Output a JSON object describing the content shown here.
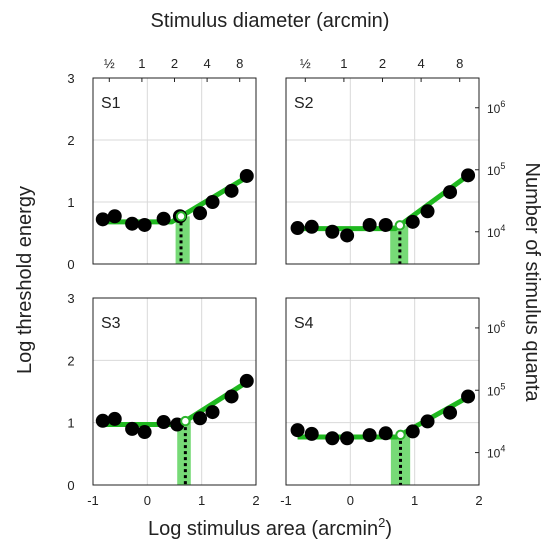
{
  "figure": {
    "top_axis_title": "Stimulus diameter (arcmin)",
    "bottom_axis_title": "Log stimulus area (arcmin",
    "bottom_axis_title_sup": "2",
    "bottom_axis_title_end": ")",
    "left_axis_title": "Log threshold energy",
    "right_axis_title": "Number of stimulus quanta"
  },
  "colors": {
    "fit_line": "#1fb81f",
    "shade": "#5fd35f",
    "points": "#000000",
    "critical_point_fill": "#ffffff",
    "critical_point_stroke": "#2bb52b",
    "grid": "#d9d9d9"
  },
  "chart_data": [
    {
      "type": "scatter",
      "panel": "S1",
      "x": [
        -0.82,
        -0.6,
        -0.28,
        -0.05,
        0.3,
        0.6,
        0.97,
        1.2,
        1.55,
        1.83
      ],
      "y": [
        0.72,
        0.77,
        0.65,
        0.63,
        0.73,
        0.77,
        0.82,
        1.0,
        1.18,
        1.42
      ],
      "fit": [
        [
          -0.82,
          0.68
        ],
        [
          0.45,
          0.68
        ],
        [
          1.83,
          1.4
        ]
      ],
      "critical_x": 0.62,
      "shade_x": [
        0.52,
        0.78
      ],
      "xlim": [
        -1,
        2
      ],
      "ylim": [
        0,
        3
      ],
      "x_ticks": [
        "-1",
        "0",
        "1",
        "2"
      ],
      "y_ticks": [
        "0",
        "1",
        "2",
        "3"
      ],
      "top_ticks": [
        {
          "x": -0.7,
          "label": "½"
        },
        {
          "x": -0.1,
          "label": "1"
        },
        {
          "x": 0.5,
          "label": "2"
        },
        {
          "x": 1.1,
          "label": "4"
        },
        {
          "x": 1.7,
          "label": "8"
        }
      ],
      "right_ticks": []
    },
    {
      "type": "scatter",
      "panel": "S2",
      "x": [
        -0.82,
        -0.6,
        -0.28,
        -0.05,
        0.3,
        0.55,
        0.97,
        1.2,
        1.55,
        1.83
      ],
      "y": [
        0.58,
        0.6,
        0.52,
        0.46,
        0.63,
        0.63,
        0.68,
        0.85,
        1.16,
        1.43
      ],
      "fit": [
        [
          -0.82,
          0.57
        ],
        [
          0.7,
          0.57
        ],
        [
          1.83,
          1.43
        ]
      ],
      "critical_x": 0.77,
      "shade_x": [
        0.62,
        0.9
      ],
      "xlim": [
        -1,
        2
      ],
      "ylim": [
        0,
        3
      ],
      "x_ticks": [
        "-1",
        "0",
        "1",
        "2"
      ],
      "y_ticks": [
        "0",
        "1",
        "2",
        "3"
      ],
      "top_ticks": [
        {
          "x": -0.7,
          "label": "½"
        },
        {
          "x": -0.1,
          "label": "1"
        },
        {
          "x": 0.5,
          "label": "2"
        },
        {
          "x": 1.1,
          "label": "4"
        },
        {
          "x": 1.7,
          "label": "8"
        }
      ],
      "right_ticks": [
        {
          "y": 0.52,
          "label": "10",
          "exp": "4"
        },
        {
          "y": 1.52,
          "label": "10",
          "exp": "5"
        },
        {
          "y": 2.52,
          "label": "10",
          "exp": "6"
        }
      ]
    },
    {
      "type": "scatter",
      "panel": "S3",
      "x": [
        -0.82,
        -0.6,
        -0.28,
        -0.05,
        0.3,
        0.55,
        0.97,
        1.2,
        1.55,
        1.83
      ],
      "y": [
        1.03,
        1.06,
        0.9,
        0.85,
        1.01,
        0.97,
        1.07,
        1.17,
        1.42,
        1.67
      ],
      "fit": [
        [
          -0.82,
          0.97
        ],
        [
          0.6,
          0.97
        ],
        [
          1.83,
          1.65
        ]
      ],
      "critical_x": 0.7,
      "shade_x": [
        0.55,
        0.8
      ],
      "xlim": [
        -1,
        2
      ],
      "ylim": [
        0,
        3
      ],
      "x_ticks": [
        "-1",
        "0",
        "1",
        "2"
      ],
      "y_ticks": [
        "0",
        "1",
        "2",
        "3"
      ],
      "top_ticks": [],
      "right_ticks": []
    },
    {
      "type": "scatter",
      "panel": "S4",
      "x": [
        -0.82,
        -0.6,
        -0.28,
        -0.05,
        0.3,
        0.55,
        0.97,
        1.2,
        1.55,
        1.83
      ],
      "y": [
        0.88,
        0.82,
        0.75,
        0.75,
        0.8,
        0.83,
        0.86,
        1.02,
        1.16,
        1.42
      ],
      "fit": [
        [
          -0.82,
          0.77
        ],
        [
          0.72,
          0.77
        ],
        [
          1.83,
          1.41
        ]
      ],
      "critical_x": 0.78,
      "shade_x": [
        0.63,
        0.93
      ],
      "xlim": [
        -1,
        2
      ],
      "ylim": [
        0,
        3
      ],
      "x_ticks": [
        "-1",
        "0",
        "1",
        "2"
      ],
      "y_ticks": [
        "0",
        "1",
        "2",
        "3"
      ],
      "top_ticks": [],
      "right_ticks": [
        {
          "y": 0.52,
          "label": "10",
          "exp": "4"
        },
        {
          "y": 1.52,
          "label": "10",
          "exp": "5"
        },
        {
          "y": 2.52,
          "label": "10",
          "exp": "6"
        }
      ]
    }
  ]
}
